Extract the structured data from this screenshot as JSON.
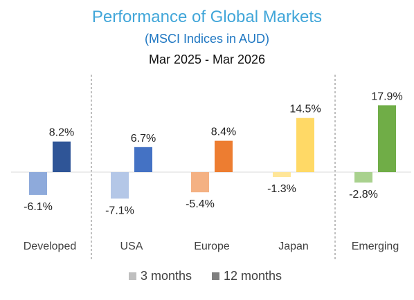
{
  "chart_data": {
    "type": "bar",
    "title": "Performance of Global Markets",
    "subtitle": "(MSCI Indices in AUD)",
    "period": "Mar 2025 - Mar 2026",
    "categories": [
      "Developed",
      "USA",
      "Europe",
      "Japan",
      "Emerging"
    ],
    "series": [
      {
        "name": "3 months",
        "values": [
          -6.1,
          -7.1,
          -5.4,
          -1.3,
          -2.8
        ],
        "labels": [
          "-6.1%",
          "-7.1%",
          "-5.4%",
          "-1.3%",
          "-2.8%"
        ],
        "colors": [
          "#8eaadb",
          "#b4c7e7",
          "#f4b183",
          "#ffe699",
          "#a9d18e"
        ]
      },
      {
        "name": "12 months",
        "values": [
          8.2,
          6.7,
          8.4,
          14.5,
          17.9
        ],
        "labels": [
          "8.2%",
          "6.7%",
          "8.4%",
          "14.5%",
          "17.9%"
        ],
        "colors": [
          "#2f5597",
          "#4472c4",
          "#ed7d31",
          "#ffd966",
          "#70ad47"
        ]
      }
    ],
    "legend": [
      {
        "label": "3 months",
        "color": "#bfbfbf"
      },
      {
        "label": "12 months",
        "color": "#7f7f7f"
      }
    ],
    "legend_position": "bottom",
    "ylim": [
      -10,
      20
    ],
    "grid": false,
    "colors": {
      "title": "#41a6d9",
      "subtitle": "#1f77c2",
      "period": "#111111",
      "text": "#404040",
      "zero_line": "#d9d9d9",
      "divider": "#7f7f7f"
    }
  }
}
